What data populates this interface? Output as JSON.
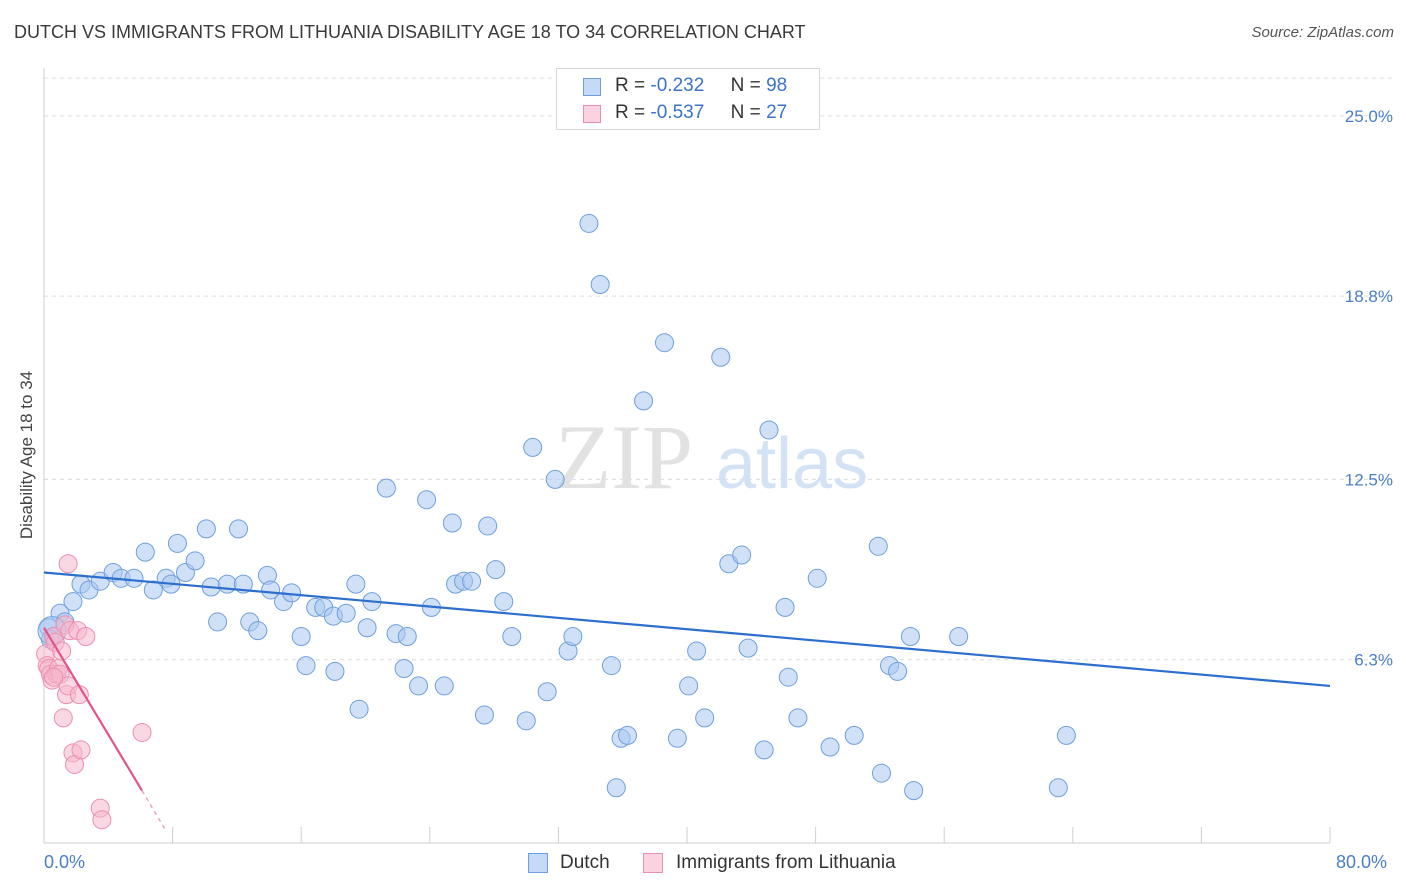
{
  "title": "DUTCH VS IMMIGRANTS FROM LITHUANIA DISABILITY AGE 18 TO 34 CORRELATION CHART",
  "source": "Source: ZipAtlas.com",
  "watermark": {
    "zip": "ZIP",
    "atlas": "atlas"
  },
  "legend_top": [
    {
      "r_label": "R =",
      "r_value": "-0.232",
      "n_label": "N =",
      "n_value": "98",
      "color": "#a9c8f0"
    },
    {
      "r_label": "R =",
      "r_value": "-0.537",
      "n_label": "N =",
      "n_value": "27",
      "color": "#f5b8cc"
    }
  ],
  "legend_bottom": [
    {
      "label": "Dutch",
      "color": "#a9c8f0"
    },
    {
      "label": "Immigrants from Lithuania",
      "color": "#f5b8cc"
    }
  ],
  "x_tick_labels": {
    "left": "0.0%",
    "right": "80.0%"
  },
  "chart_data": {
    "type": "scatter",
    "title": "DUTCH VS IMMIGRANTS FROM LITHUANIA DISABILITY AGE 18 TO 34 CORRELATION CHART",
    "xlabel": "",
    "ylabel": "Disability Age 18 to 34",
    "xlim": [
      0,
      80
    ],
    "ylim": [
      0,
      26.3
    ],
    "y_ticks": [
      {
        "value": 6.3,
        "label": "6.3%"
      },
      {
        "value": 12.5,
        "label": "12.5%"
      },
      {
        "value": 18.8,
        "label": "18.8%"
      },
      {
        "value": 25.0,
        "label": "25.0%"
      }
    ],
    "grid": true,
    "legend_position": "top-center",
    "series": [
      {
        "name": "Dutch",
        "color": "#6f9fdd",
        "fill": "#a9c8f0",
        "trend": {
          "x": [
            0,
            80
          ],
          "y": [
            9.3,
            5.4
          ],
          "color": "#2c6fce"
        },
        "points": [
          [
            0.3,
            7.4
          ],
          [
            0.6,
            7.1
          ],
          [
            1.0,
            7.9
          ],
          [
            1.3,
            7.6
          ],
          [
            1.8,
            8.3
          ],
          [
            2.3,
            8.9
          ],
          [
            2.8,
            8.7
          ],
          [
            3.5,
            9.0
          ],
          [
            4.3,
            9.3
          ],
          [
            4.8,
            9.1
          ],
          [
            5.6,
            9.1
          ],
          [
            6.3,
            10.0
          ],
          [
            6.8,
            8.7
          ],
          [
            7.6,
            9.1
          ],
          [
            7.9,
            8.9
          ],
          [
            8.3,
            10.3
          ],
          [
            8.8,
            9.3
          ],
          [
            9.4,
            9.7
          ],
          [
            10.1,
            10.8
          ],
          [
            10.4,
            8.8
          ],
          [
            10.8,
            7.6
          ],
          [
            11.4,
            8.9
          ],
          [
            12.1,
            10.8
          ],
          [
            12.4,
            8.9
          ],
          [
            12.8,
            7.6
          ],
          [
            13.3,
            7.3
          ],
          [
            13.9,
            9.2
          ],
          [
            14.1,
            8.7
          ],
          [
            14.9,
            8.3
          ],
          [
            15.4,
            8.6
          ],
          [
            16.0,
            7.1
          ],
          [
            16.3,
            6.1
          ],
          [
            16.9,
            8.1
          ],
          [
            17.4,
            8.1
          ],
          [
            18.0,
            7.8
          ],
          [
            18.1,
            5.9
          ],
          [
            18.8,
            7.9
          ],
          [
            19.4,
            8.9
          ],
          [
            19.6,
            4.6
          ],
          [
            20.1,
            7.4
          ],
          [
            20.4,
            8.3
          ],
          [
            21.3,
            12.2
          ],
          [
            21.9,
            7.2
          ],
          [
            22.4,
            6.0
          ],
          [
            22.6,
            7.1
          ],
          [
            23.3,
            5.4
          ],
          [
            23.8,
            11.8
          ],
          [
            24.1,
            8.1
          ],
          [
            24.9,
            5.4
          ],
          [
            25.4,
            11.0
          ],
          [
            25.6,
            8.9
          ],
          [
            26.1,
            9.0
          ],
          [
            26.6,
            9.0
          ],
          [
            27.4,
            4.4
          ],
          [
            27.6,
            10.9
          ],
          [
            28.1,
            9.4
          ],
          [
            28.6,
            8.3
          ],
          [
            29.1,
            7.1
          ],
          [
            30.0,
            4.2
          ],
          [
            30.4,
            13.6
          ],
          [
            31.3,
            5.2
          ],
          [
            31.8,
            12.5
          ],
          [
            32.6,
            6.6
          ],
          [
            32.9,
            7.1
          ],
          [
            33.9,
            21.3
          ],
          [
            34.6,
            19.2
          ],
          [
            35.3,
            6.1
          ],
          [
            35.6,
            1.9
          ],
          [
            35.9,
            3.6
          ],
          [
            36.3,
            3.7
          ],
          [
            37.3,
            15.2
          ],
          [
            38.6,
            17.2
          ],
          [
            39.4,
            3.6
          ],
          [
            40.1,
            5.4
          ],
          [
            40.6,
            6.6
          ],
          [
            41.1,
            4.3
          ],
          [
            42.1,
            16.7
          ],
          [
            42.6,
            9.6
          ],
          [
            43.4,
            9.9
          ],
          [
            43.8,
            6.7
          ],
          [
            44.8,
            3.2
          ],
          [
            45.1,
            14.2
          ],
          [
            46.1,
            8.1
          ],
          [
            46.3,
            5.7
          ],
          [
            46.9,
            4.3
          ],
          [
            48.1,
            9.1
          ],
          [
            48.9,
            3.3
          ],
          [
            50.4,
            3.7
          ],
          [
            51.9,
            10.2
          ],
          [
            52.1,
            2.4
          ],
          [
            52.6,
            6.1
          ],
          [
            53.1,
            5.9
          ],
          [
            53.9,
            7.1
          ],
          [
            54.1,
            1.8
          ],
          [
            56.9,
            7.1
          ],
          [
            63.1,
            1.9
          ],
          [
            63.6,
            3.7
          ],
          [
            0.4,
            7.0
          ]
        ]
      },
      {
        "name": "Immigrants from Lithuania",
        "color": "#ec8fb0",
        "fill": "#f5b8cc",
        "trend": {
          "x": [
            0,
            6.1
          ],
          "y": [
            7.4,
            1.8
          ],
          "dashed_to": [
            7.5,
            0.5
          ],
          "color": "#e2538a"
        },
        "points": [
          [
            0.1,
            6.5
          ],
          [
            0.2,
            6.1
          ],
          [
            0.3,
            6.0
          ],
          [
            0.4,
            5.8
          ],
          [
            0.5,
            5.6
          ],
          [
            0.6,
            7.1
          ],
          [
            0.7,
            6.9
          ],
          [
            0.8,
            5.8
          ],
          [
            0.9,
            6.0
          ],
          [
            1.0,
            5.8
          ],
          [
            1.1,
            6.6
          ],
          [
            1.2,
            4.3
          ],
          [
            1.3,
            7.5
          ],
          [
            1.4,
            5.1
          ],
          [
            1.5,
            5.4
          ],
          [
            1.6,
            7.3
          ],
          [
            1.8,
            3.1
          ],
          [
            1.9,
            2.7
          ],
          [
            2.1,
            7.3
          ],
          [
            2.2,
            5.1
          ],
          [
            2.3,
            3.2
          ],
          [
            2.6,
            7.1
          ],
          [
            3.5,
            1.2
          ],
          [
            3.6,
            0.8
          ],
          [
            6.1,
            3.8
          ],
          [
            1.5,
            9.6
          ],
          [
            0.6,
            5.7
          ]
        ]
      }
    ]
  }
}
